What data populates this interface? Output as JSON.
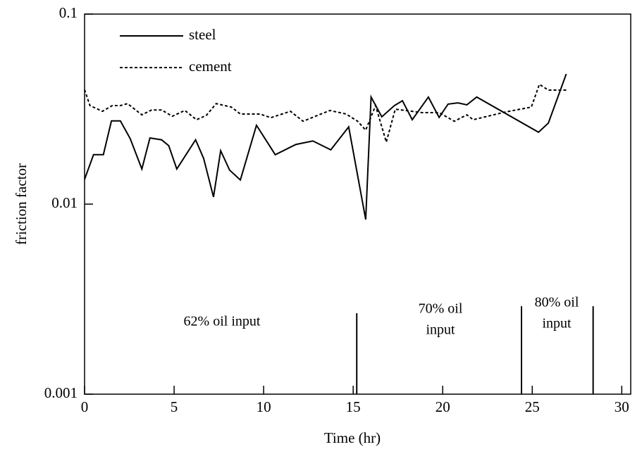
{
  "chart_data": {
    "type": "line",
    "xlabel": "Time (hr)",
    "ylabel": "friction factor",
    "xlim": [
      0,
      30.5
    ],
    "xticks": [
      0,
      5,
      10,
      15,
      20,
      25,
      30
    ],
    "ylim": [
      0.001,
      0.1
    ],
    "yticks": [
      0.001,
      0.01,
      0.1
    ],
    "yscale": "log",
    "legend": "upper left",
    "series": [
      {
        "name": "steel",
        "color": "#000000",
        "dash": "solid",
        "x": [
          0,
          0.5,
          1.05,
          1.5,
          2.0,
          2.55,
          3.2,
          3.65,
          4.3,
          4.7,
          5.15,
          6.2,
          6.65,
          7.2,
          7.6,
          8.1,
          8.7,
          9.6,
          10.65,
          11.8,
          12.75,
          13.75,
          14.75,
          15.7,
          16.0,
          16.6,
          17.3,
          17.75,
          18.3,
          19.2,
          19.8,
          20.3,
          20.85,
          21.35,
          21.9,
          25.35,
          25.9,
          26.9
        ],
        "values": [
          0.0135,
          0.0182,
          0.0182,
          0.0274,
          0.0274,
          0.0221,
          0.0153,
          0.0223,
          0.0218,
          0.0203,
          0.0153,
          0.0218,
          0.0174,
          0.0109,
          0.0191,
          0.0151,
          0.0134,
          0.026,
          0.0182,
          0.0206,
          0.0215,
          0.0193,
          0.0255,
          0.0083,
          0.0366,
          0.0288,
          0.033,
          0.035,
          0.0278,
          0.0366,
          0.0286,
          0.0336,
          0.0341,
          0.0333,
          0.0366,
          0.0239,
          0.0267,
          0.0484
        ]
      },
      {
        "name": "cement",
        "color": "#000000",
        "dash": "dashed",
        "x": [
          0,
          0.3,
          1.0,
          1.55,
          2.0,
          2.4,
          3.2,
          3.75,
          4.3,
          4.9,
          5.6,
          6.25,
          6.8,
          7.35,
          8.2,
          8.7,
          9.8,
          10.4,
          11.5,
          12.2,
          13.7,
          14.6,
          15.25,
          15.7,
          16.25,
          16.85,
          17.35,
          18.85,
          19.8,
          20.65,
          21.35,
          21.7,
          23.55,
          24.95,
          25.4,
          25.9,
          26.9
        ],
        "values": [
          0.04,
          0.033,
          0.0308,
          0.033,
          0.033,
          0.0338,
          0.0295,
          0.0313,
          0.0313,
          0.029,
          0.0311,
          0.0278,
          0.0293,
          0.0338,
          0.0324,
          0.0298,
          0.0298,
          0.0285,
          0.0308,
          0.0273,
          0.0311,
          0.0298,
          0.0273,
          0.0245,
          0.033,
          0.0212,
          0.0316,
          0.0303,
          0.0303,
          0.0273,
          0.0295,
          0.0278,
          0.0306,
          0.0324,
          0.0427,
          0.0398,
          0.0398
        ]
      }
    ],
    "phase_boundaries": [
      15.2,
      24.4,
      28.4
    ],
    "annotations": [
      {
        "lines": [
          "62% oil input"
        ]
      },
      {
        "lines": [
          "70% oil",
          "input"
        ]
      },
      {
        "lines": [
          "80% oil",
          "input"
        ]
      }
    ]
  }
}
